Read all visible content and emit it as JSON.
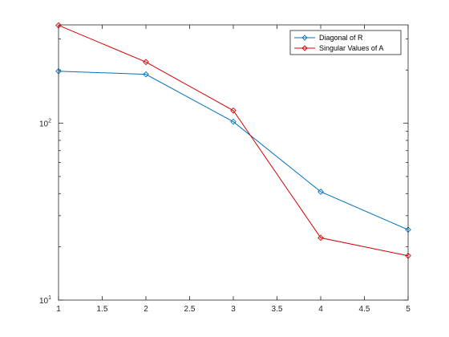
{
  "chart_data": {
    "type": "line",
    "title": "",
    "xlabel": "",
    "ylabel": "",
    "x": [
      1,
      2,
      3,
      4,
      5
    ],
    "xlim": [
      1,
      5
    ],
    "ylim": [
      10,
      360
    ],
    "yscale": "log",
    "grid": false,
    "legend_position": "top-right",
    "x_ticks": [
      "1",
      "1.5",
      "2",
      "2.5",
      "3",
      "3.5",
      "4",
      "4.5",
      "5"
    ],
    "series": [
      {
        "name": "Diagonal of R",
        "values": [
          197,
          189,
          102,
          41,
          25
        ],
        "color": "#0072bd",
        "marker": "diamond"
      },
      {
        "name": "Singular Values of A",
        "values": [
          358,
          222,
          118,
          22.5,
          17.8
        ],
        "color": "#d40000",
        "marker": "diamond"
      }
    ]
  }
}
